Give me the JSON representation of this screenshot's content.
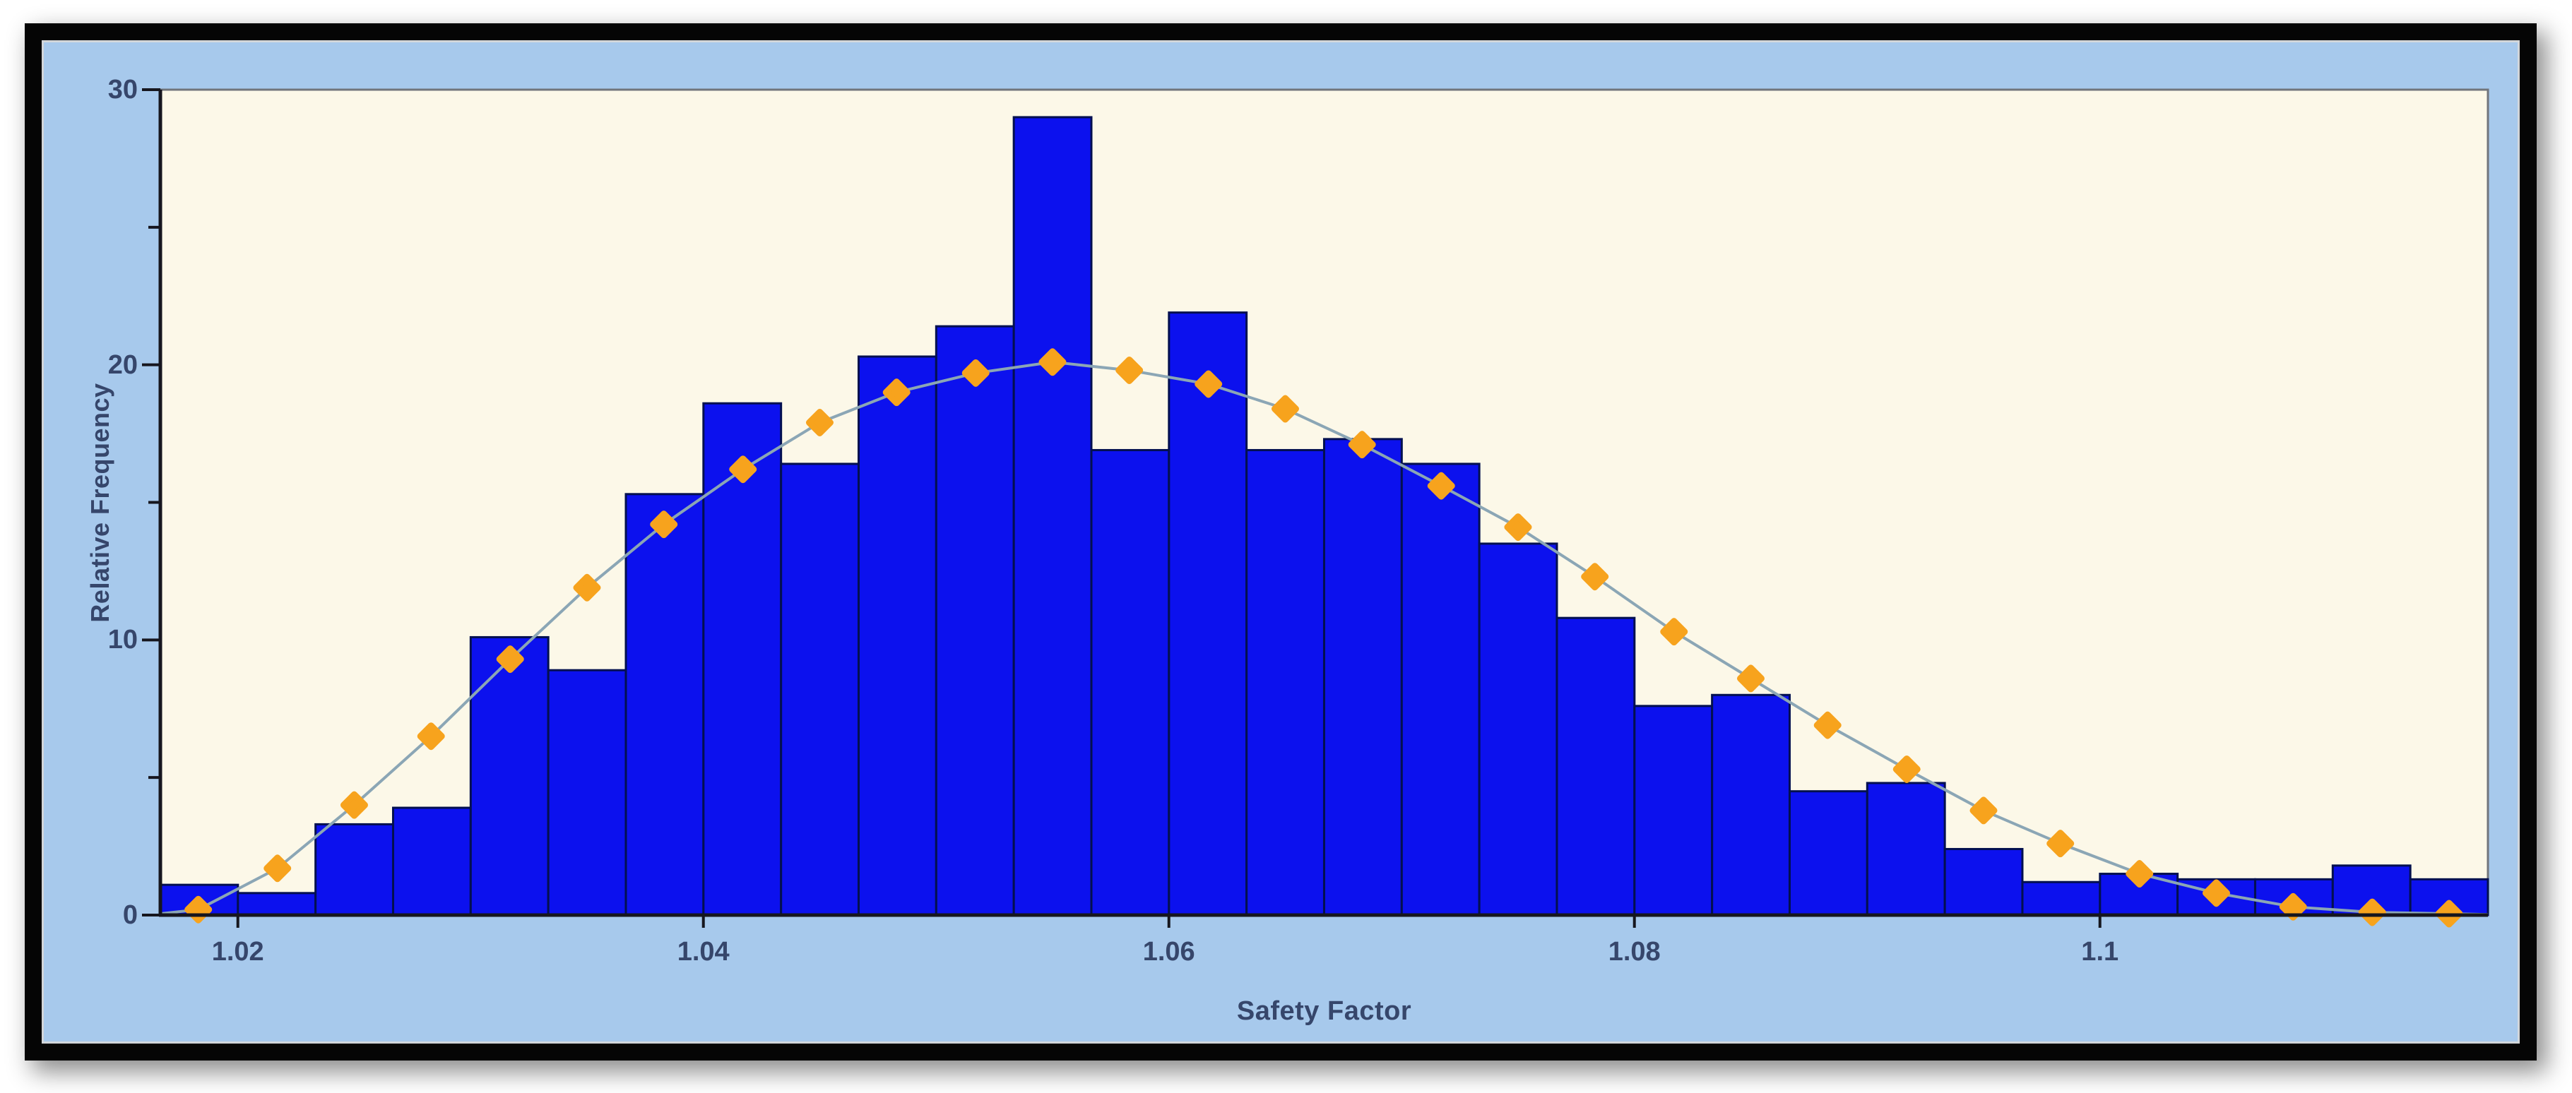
{
  "chart": {
    "xlabel": "Safety Factor",
    "ylabel": "Relative Frequency",
    "x_ticks": [
      1.02,
      1.04,
      1.06,
      1.08,
      1.1
    ],
    "x_tick_labels": [
      "1.02",
      "1.04",
      "1.06",
      "1.08",
      "1.1"
    ],
    "y_ticks": [
      0,
      10,
      20,
      30
    ],
    "y_tick_labels": [
      "0",
      "10",
      "20",
      "30"
    ],
    "y_minor_ticks": [
      5,
      15,
      25
    ]
  },
  "chart_data": {
    "type": "bar",
    "subtype": "histogram-with-fit-curve",
    "xlabel": "Safety Factor",
    "ylabel": "Relative Frequency",
    "xlim": [
      1.01667,
      1.11667
    ],
    "ylim": [
      0,
      30
    ],
    "grid": false,
    "legend": "none",
    "bin_start": 1.01667,
    "bin_width": 0.0033333,
    "bar_values": [
      1.1,
      0.8,
      3.3,
      3.9,
      10.1,
      8.9,
      15.3,
      18.6,
      16.4,
      20.3,
      21.4,
      29.0,
      16.9,
      21.9,
      16.9,
      17.3,
      16.4,
      13.5,
      10.8,
      7.6,
      8.0,
      4.5,
      4.8,
      2.4,
      1.2,
      1.5,
      1.3,
      1.3,
      1.8,
      1.3
    ],
    "series": [
      {
        "name": "relative-frequency-histogram",
        "values": [
          1.1,
          0.8,
          3.3,
          3.9,
          10.1,
          8.9,
          15.3,
          18.6,
          16.4,
          20.3,
          21.4,
          29.0,
          16.9,
          21.9,
          16.9,
          17.3,
          16.4,
          13.5,
          10.8,
          7.6,
          8.0,
          4.5,
          4.8,
          2.4,
          1.2,
          1.5,
          1.3,
          1.3,
          1.8,
          1.3
        ]
      },
      {
        "name": "fitted-distribution-curve",
        "x": [
          1.0183,
          1.0217,
          1.025,
          1.0283,
          1.0317,
          1.035,
          1.0383,
          1.0417,
          1.045,
          1.0483,
          1.0517,
          1.055,
          1.0583,
          1.0617,
          1.065,
          1.0683,
          1.0717,
          1.075,
          1.0783,
          1.0817,
          1.085,
          1.0883,
          1.0917,
          1.095,
          1.0983,
          1.1017,
          1.105,
          1.1083,
          1.1117,
          1.115
        ],
        "values": [
          0.2,
          1.7,
          4.0,
          6.5,
          9.3,
          11.9,
          14.2,
          16.2,
          17.9,
          19.0,
          19.7,
          20.1,
          19.8,
          19.3,
          18.4,
          17.1,
          15.6,
          14.1,
          12.3,
          10.3,
          8.6,
          6.9,
          5.3,
          3.8,
          2.6,
          1.5,
          0.8,
          0.3,
          0.1,
          0.05
        ]
      }
    ],
    "curve_edge_start": {
      "x": 1.01667,
      "y": 0.05
    },
    "curve_edge_end": {
      "x": 1.11667,
      "y": 0.02
    }
  },
  "colors": {
    "page_bg": "#ffffff",
    "frame": "#050505",
    "panel_bg": "#a7c9ec",
    "panel_edge": "#d2d6da",
    "plot_bg": "#fcf8e8",
    "plot_border": "#71757b",
    "axis": "#16161e",
    "bar_fill": "#0c11ee",
    "bar_edge": "#03104f",
    "curve": "#8ba6b5",
    "marker_fill": "#f7a31d",
    "marker_edge": "#e8940f",
    "text": "#36466b"
  }
}
